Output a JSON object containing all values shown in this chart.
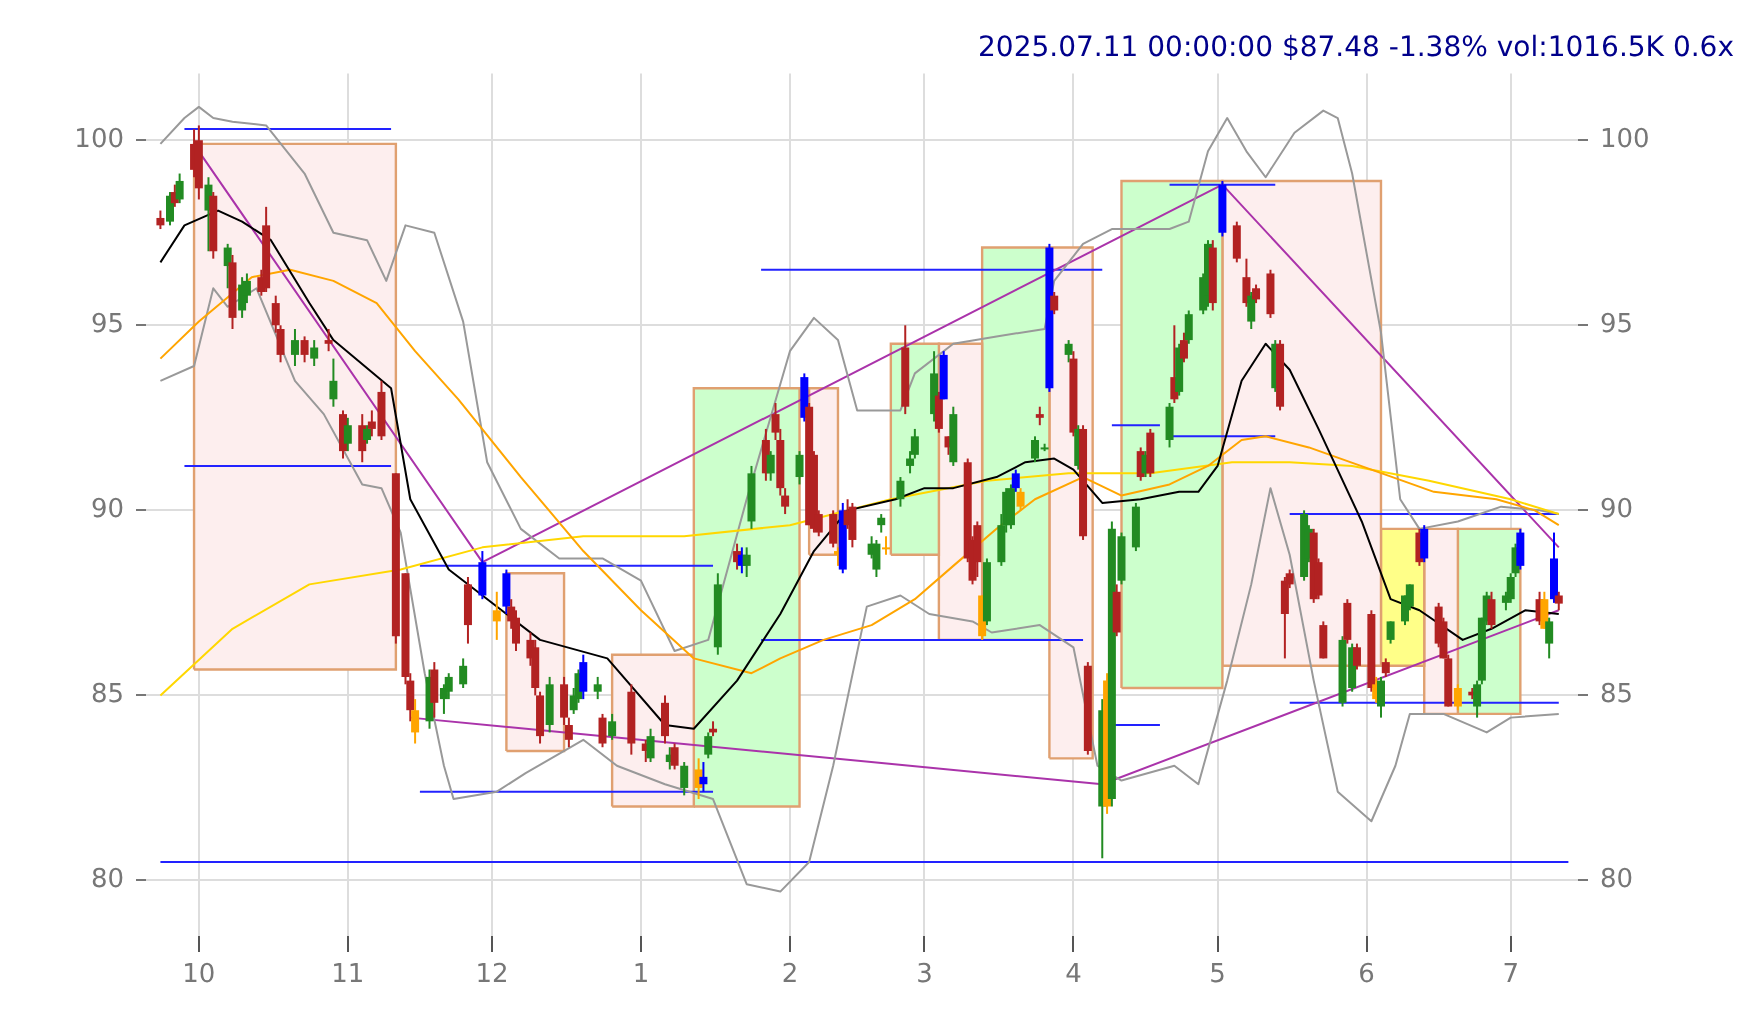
{
  "chart_data": {
    "type": "candlestick",
    "title": "2025.07.11 00:00:00 $87.48 -1.38% vol:1016.5K 0.6x",
    "xlim": [
      "2024-09-20",
      "2025-07-15"
    ],
    "xticks": [
      {
        "value": "2024-10-01",
        "label": "10"
      },
      {
        "value": "2024-11-01",
        "label": "11"
      },
      {
        "value": "2024-12-01",
        "label": "12"
      },
      {
        "value": "2025-01-01",
        "label": "1"
      },
      {
        "value": "2025-02-01",
        "label": "2"
      },
      {
        "value": "2025-03-01",
        "label": "3"
      },
      {
        "value": "2025-04-01",
        "label": "4"
      },
      {
        "value": "2025-05-01",
        "label": "5"
      },
      {
        "value": "2025-06-01",
        "label": "6"
      },
      {
        "value": "2025-07-01",
        "label": "7"
      }
    ],
    "ylim": [
      78.5,
      101.8
    ],
    "yticks": [
      80,
      85,
      90,
      95,
      100
    ],
    "y2lim": [
      78.5,
      101.8
    ],
    "y2ticks": [
      80,
      85,
      90,
      95,
      100
    ],
    "grid": true,
    "x": [
      "2024-09-23",
      "2024-09-25",
      "2024-09-26",
      "2024-09-27",
      "2024-09-30",
      "2024-10-01",
      "2024-10-03",
      "2024-10-04",
      "2024-10-07",
      "2024-10-08",
      "2024-10-10",
      "2024-10-11",
      "2024-10-14",
      "2024-10-15",
      "2024-10-17",
      "2024-10-18",
      "2024-10-21",
      "2024-10-23",
      "2024-10-25",
      "2024-10-28",
      "2024-10-29",
      "2024-10-31",
      "2024-11-01",
      "2024-11-04",
      "2024-11-05",
      "2024-11-06",
      "2024-11-08",
      "2024-11-11",
      "2024-11-13",
      "2024-11-14",
      "2024-11-15",
      "2024-11-18",
      "2024-11-19",
      "2024-11-21",
      "2024-11-22",
      "2024-11-25",
      "2024-11-26",
      "2024-11-29",
      "2024-12-02",
      "2024-12-04",
      "2024-12-05",
      "2024-12-06",
      "2024-12-09",
      "2024-12-10",
      "2024-12-11",
      "2024-12-13",
      "2024-12-16",
      "2024-12-17",
      "2024-12-18",
      "2024-12-19",
      "2024-12-20",
      "2024-12-23",
      "2024-12-24",
      "2024-12-26",
      "2024-12-30",
      "2025-01-02",
      "2025-01-03",
      "2025-01-06",
      "2025-01-07",
      "2025-01-08",
      "2025-01-10",
      "2025-01-13",
      "2025-01-14",
      "2025-01-15",
      "2025-01-16",
      "2025-01-17",
      "2025-01-21",
      "2025-01-22",
      "2025-01-23",
      "2025-01-24",
      "2025-01-27",
      "2025-01-28",
      "2025-01-29",
      "2025-01-30",
      "2025-01-31",
      "2025-02-03",
      "2025-02-04",
      "2025-02-05",
      "2025-02-06",
      "2025-02-07",
      "2025-02-10",
      "2025-02-11",
      "2025-02-12",
      "2025-02-13",
      "2025-02-14",
      "2025-02-18",
      "2025-02-19",
      "2025-02-20",
      "2025-02-21",
      "2025-02-24",
      "2025-02-25",
      "2025-02-26",
      "2025-02-27",
      "2025-03-03",
      "2025-03-04",
      "2025-03-05",
      "2025-03-06",
      "2025-03-07",
      "2025-03-10",
      "2025-03-11",
      "2025-03-12",
      "2025-03-13",
      "2025-03-14",
      "2025-03-17",
      "2025-03-18",
      "2025-03-19",
      "2025-03-20",
      "2025-03-21",
      "2025-03-24",
      "2025-03-25",
      "2025-03-26",
      "2025-03-27",
      "2025-03-28",
      "2025-03-31",
      "2025-04-01",
      "2025-04-02",
      "2025-04-03",
      "2025-04-04",
      "2025-04-07",
      "2025-04-08",
      "2025-04-09",
      "2025-04-10",
      "2025-04-11",
      "2025-04-14",
      "2025-04-15",
      "2025-04-16",
      "2025-04-17",
      "2025-04-21",
      "2025-04-22",
      "2025-04-23",
      "2025-04-24",
      "2025-04-25",
      "2025-04-28",
      "2025-04-29",
      "2025-04-30",
      "2025-05-02",
      "2025-05-05",
      "2025-05-07",
      "2025-05-08",
      "2025-05-09",
      "2025-05-12",
      "2025-05-13",
      "2025-05-14",
      "2025-05-15",
      "2025-05-16",
      "2025-05-19",
      "2025-05-20",
      "2025-05-21",
      "2025-05-22",
      "2025-05-23",
      "2025-05-27",
      "2025-05-28",
      "2025-05-29",
      "2025-05-30",
      "2025-06-02",
      "2025-06-03",
      "2025-06-04",
      "2025-06-05",
      "2025-06-06",
      "2025-06-09",
      "2025-06-10",
      "2025-06-12",
      "2025-06-13",
      "2025-06-16",
      "2025-06-17",
      "2025-06-18",
      "2025-06-20",
      "2025-06-23",
      "2025-06-24",
      "2025-06-25",
      "2025-06-26",
      "2025-06-27",
      "2025-06-30",
      "2025-07-01",
      "2025-07-02",
      "2025-07-03",
      "2025-07-07",
      "2025-07-08",
      "2025-07-09",
      "2025-07-10",
      "2025-07-11"
    ],
    "ohlc": [
      [
        97.9,
        98.1,
        97.6,
        97.7
      ],
      [
        97.8,
        98.6,
        97.7,
        98.5
      ],
      [
        98.6,
        98.8,
        98.2,
        98.3
      ],
      [
        98.4,
        99.1,
        98.3,
        98.9
      ],
      [
        99.9,
        100.3,
        99.0,
        99.2
      ],
      [
        100.0,
        100.4,
        98.4,
        98.7
      ],
      [
        98.1,
        99.0,
        97.0,
        98.8
      ],
      [
        98.5,
        98.6,
        96.8,
        97.0
      ],
      [
        96.6,
        97.2,
        96.0,
        97.1
      ],
      [
        96.7,
        96.9,
        94.9,
        95.2
      ],
      [
        95.4,
        96.3,
        95.2,
        96.1
      ],
      [
        95.8,
        96.4,
        95.6,
        96.2
      ],
      [
        96.3,
        96.5,
        95.8,
        95.9
      ],
      [
        97.7,
        98.2,
        95.9,
        96.0
      ],
      [
        95.6,
        95.8,
        94.8,
        95.0
      ],
      [
        94.9,
        95.0,
        94.0,
        94.2
      ],
      [
        94.2,
        94.9,
        93.9,
        94.6
      ],
      [
        94.6,
        94.7,
        94.0,
        94.2
      ],
      [
        94.1,
        94.6,
        93.9,
        94.4
      ],
      [
        94.6,
        94.9,
        94.3,
        94.5
      ],
      [
        93.0,
        94.1,
        92.8,
        93.5
      ],
      [
        92.6,
        92.7,
        91.4,
        91.6
      ],
      [
        91.8,
        92.5,
        91.6,
        92.3
      ],
      [
        92.3,
        92.6,
        91.3,
        91.6
      ],
      [
        91.9,
        92.3,
        91.8,
        92.2
      ],
      [
        92.4,
        92.7,
        92.0,
        92.2
      ],
      [
        93.2,
        93.5,
        91.9,
        92.0
      ],
      [
        91.0,
        91.0,
        86.4,
        86.6
      ],
      [
        88.3,
        88.3,
        85.3,
        85.5
      ],
      [
        85.4,
        85.6,
        84.3,
        84.6
      ],
      [
        84.6,
        84.9,
        83.7,
        84.0
      ],
      [
        84.3,
        85.7,
        84.1,
        85.5
      ],
      [
        85.7,
        85.9,
        84.4,
        84.8
      ],
      [
        84.9,
        85.3,
        84.5,
        85.2
      ],
      [
        85.1,
        85.6,
        84.9,
        85.5
      ],
      [
        85.3,
        86.0,
        85.2,
        85.8
      ],
      [
        88.0,
        88.2,
        86.4,
        86.9
      ],
      [
        87.7,
        88.9,
        87.6,
        88.6
      ],
      [
        87.3,
        87.8,
        86.5,
        87.0
      ],
      [
        88.3,
        88.4,
        87.2,
        87.4
      ],
      [
        87.4,
        87.6,
        86.8,
        87.0
      ],
      [
        87.1,
        87.3,
        86.2,
        86.4
      ],
      [
        86.5,
        86.7,
        85.8,
        86.0
      ],
      [
        86.3,
        86.5,
        85.0,
        85.2
      ],
      [
        85.0,
        85.1,
        83.7,
        83.9
      ],
      [
        84.2,
        85.5,
        84.0,
        85.3
      ],
      [
        85.3,
        85.5,
        84.2,
        84.4
      ],
      [
        84.2,
        84.4,
        83.6,
        83.8
      ],
      [
        84.6,
        85.2,
        84.5,
        85.0
      ],
      [
        84.9,
        85.7,
        84.8,
        85.6
      ],
      [
        85.9,
        86.1,
        84.9,
        85.1
      ],
      [
        85.1,
        85.5,
        84.9,
        85.3
      ],
      [
        84.4,
        84.5,
        83.6,
        83.7
      ],
      [
        83.9,
        84.5,
        83.8,
        84.3
      ],
      [
        85.1,
        85.3,
        83.4,
        83.7
      ],
      [
        83.7,
        83.8,
        83.2,
        83.5
      ],
      [
        83.3,
        84.1,
        83.2,
        83.9
      ],
      [
        84.8,
        85.0,
        83.7,
        83.9
      ],
      [
        83.2,
        83.6,
        83.0,
        83.4
      ],
      [
        83.6,
        83.7,
        83.0,
        83.1
      ],
      [
        82.5,
        83.2,
        82.3,
        83.1
      ],
      [
        83.0,
        83.3,
        82.2,
        82.5
      ],
      [
        82.6,
        83.2,
        82.4,
        82.8
      ],
      [
        83.4,
        84.0,
        83.3,
        83.9
      ],
      [
        84.1,
        84.3,
        83.9,
        84.0
      ],
      [
        86.3,
        88.3,
        86.1,
        88.0
      ],
      [
        88.9,
        89.1,
        88.4,
        88.6
      ],
      [
        88.5,
        89.0,
        88.3,
        88.8
      ],
      [
        88.5,
        89.0,
        88.2,
        88.8
      ],
      [
        89.7,
        91.2,
        89.5,
        91.0
      ],
      [
        91.9,
        92.2,
        90.8,
        91.0
      ],
      [
        91.0,
        91.6,
        90.8,
        91.5
      ],
      [
        92.6,
        92.9,
        91.9,
        92.1
      ],
      [
        91.9,
        92.2,
        90.4,
        90.6
      ],
      [
        90.4,
        90.6,
        89.9,
        90.1
      ],
      [
        90.9,
        91.6,
        90.7,
        91.5
      ],
      [
        92.5,
        93.7,
        92.4,
        93.6
      ],
      [
        92.8,
        92.9,
        89.6,
        89.6
      ],
      [
        91.5,
        91.6,
        89.4,
        89.5
      ],
      [
        89.9,
        90.0,
        89.3,
        89.4
      ],
      [
        89.9,
        90.0,
        89.0,
        89.1
      ],
      [
        88.9,
        89.0,
        88.5,
        88.8
      ],
      [
        88.4,
        90.2,
        88.3,
        90.0
      ],
      [
        90.0,
        90.3,
        89.5,
        89.6
      ],
      [
        90.1,
        90.2,
        89.0,
        89.2
      ],
      [
        88.8,
        89.3,
        88.7,
        89.1
      ],
      [
        88.4,
        89.2,
        88.2,
        89.1
      ],
      [
        89.6,
        89.9,
        89.4,
        89.8
      ],
      [
        89.0,
        89.3,
        88.8,
        89.0
      ],
      [
        90.3,
        90.9,
        90.1,
        90.8
      ],
      [
        94.4,
        95.0,
        92.6,
        92.8
      ],
      [
        91.2,
        91.6,
        91.0,
        91.4
      ],
      [
        91.5,
        92.2,
        91.4,
        92.0
      ],
      [
        92.6,
        94.3,
        92.4,
        93.7
      ],
      [
        93.1,
        93.2,
        92.1,
        92.2
      ],
      [
        93.0,
        94.3,
        93.0,
        94.2
      ],
      [
        92.0,
        92.0,
        91.5,
        91.7
      ],
      [
        91.3,
        92.8,
        91.2,
        92.6
      ],
      [
        91.3,
        91.4,
        88.6,
        88.7
      ],
      [
        89.2,
        89.3,
        88.0,
        88.1
      ],
      [
        89.6,
        89.7,
        88.2,
        88.6
      ],
      [
        87.7,
        87.7,
        86.5,
        86.6
      ],
      [
        87.0,
        88.7,
        86.9,
        88.6
      ],
      [
        88.6,
        89.9,
        88.5,
        89.6
      ],
      [
        89.6,
        90.6,
        89.4,
        90.5
      ],
      [
        89.6,
        90.7,
        89.5,
        90.6
      ],
      [
        90.6,
        91.1,
        90.5,
        91.0
      ],
      [
        90.5,
        90.6,
        90.0,
        90.1
      ],
      [
        91.4,
        92.0,
        91.3,
        91.9
      ],
      [
        92.6,
        92.8,
        92.3,
        92.5
      ],
      [
        91.7,
        91.8,
        91.6,
        91.7
      ],
      [
        93.3,
        97.2,
        93.2,
        97.1
      ],
      [
        95.8,
        95.9,
        95.3,
        95.4
      ],
      [
        94.2,
        94.6,
        94.0,
        94.5
      ],
      [
        94.1,
        94.3,
        92.0,
        92.1
      ],
      [
        91.2,
        92.3,
        91.1,
        92.2
      ],
      [
        92.2,
        92.3,
        89.2,
        89.3
      ],
      [
        85.8,
        85.9,
        83.4,
        83.5
      ],
      [
        82.0,
        84.9,
        80.6,
        84.6
      ],
      [
        85.4,
        85.6,
        81.8,
        82.0
      ],
      [
        82.2,
        89.7,
        82.0,
        89.5
      ],
      [
        87.8,
        88.0,
        86.6,
        86.7
      ],
      [
        88.1,
        89.4,
        88.0,
        89.3
      ],
      [
        89.0,
        90.2,
        88.9,
        90.1
      ],
      [
        91.6,
        91.7,
        90.8,
        90.9
      ],
      [
        91.0,
        91.6,
        90.9,
        91.5
      ],
      [
        92.1,
        92.2,
        90.9,
        91.0
      ],
      [
        91.9,
        92.9,
        91.7,
        92.8
      ],
      [
        93.6,
        95.0,
        92.9,
        93.0
      ],
      [
        93.2,
        94.5,
        93.1,
        94.4
      ],
      [
        94.6,
        94.8,
        94.0,
        94.1
      ],
      [
        94.6,
        95.4,
        94.5,
        95.3
      ],
      [
        95.4,
        96.4,
        95.3,
        96.3
      ],
      [
        95.8,
        97.3,
        95.5,
        97.2
      ],
      [
        97.1,
        97.3,
        95.4,
        95.6
      ],
      [
        97.5,
        98.9,
        97.4,
        98.8
      ],
      [
        97.7,
        97.8,
        96.7,
        96.8
      ],
      [
        96.3,
        96.8,
        95.5,
        95.6
      ],
      [
        95.1,
        95.9,
        94.9,
        95.8
      ],
      [
        96.0,
        96.1,
        95.6,
        95.7
      ],
      [
        96.4,
        96.5,
        95.2,
        95.3
      ],
      [
        93.3,
        94.6,
        93.2,
        94.5
      ],
      [
        94.5,
        94.6,
        92.7,
        92.8
      ],
      [
        88.1,
        88.2,
        86.0,
        87.2
      ],
      [
        88.3,
        88.4,
        87.9,
        88.0
      ],
      [
        88.2,
        90.0,
        88.1,
        89.9
      ],
      [
        88.7,
        89.6,
        88.6,
        89.5
      ],
      [
        89.4,
        89.5,
        87.5,
        87.6
      ],
      [
        88.6,
        88.7,
        87.6,
        87.7
      ],
      [
        86.9,
        87.0,
        86.0,
        86.0
      ],
      [
        84.8,
        86.6,
        84.7,
        86.5
      ],
      [
        87.5,
        87.6,
        86.4,
        86.5
      ],
      [
        85.2,
        86.4,
        85.1,
        86.3
      ],
      [
        86.3,
        86.4,
        85.7,
        85.8
      ],
      [
        87.2,
        87.3,
        85.1,
        85.2
      ],
      [
        85.3,
        85.5,
        84.8,
        84.9
      ],
      [
        84.7,
        85.5,
        84.4,
        85.4
      ],
      [
        85.9,
        86.0,
        85.5,
        85.6
      ],
      [
        86.5,
        87.0,
        86.4,
        87.0
      ],
      [
        87.0,
        87.7,
        86.9,
        87.7
      ],
      [
        87.4,
        88.0,
        87.3,
        88.0
      ],
      [
        89.4,
        89.5,
        88.5,
        88.6
      ],
      [
        88.7,
        89.6,
        88.6,
        89.5
      ],
      [
        87.4,
        87.5,
        86.3,
        86.4
      ],
      [
        87.0,
        87.1,
        86.0,
        86.0
      ],
      [
        86.0,
        86.1,
        84.7,
        84.7
      ],
      [
        85.2,
        85.3,
        84.6,
        84.7
      ],
      [
        85.1,
        85.2,
        84.9,
        85.0
      ],
      [
        84.7,
        85.4,
        84.4,
        85.3
      ],
      [
        85.4,
        87.1,
        85.3,
        87.1
      ],
      [
        87.0,
        87.8,
        86.9,
        87.7
      ],
      [
        87.6,
        87.8,
        86.8,
        86.9
      ],
      [
        87.5,
        87.8,
        87.3,
        87.7
      ],
      [
        87.6,
        88.3,
        87.5,
        88.2
      ],
      [
        88.3,
        89.1,
        88.2,
        89.0
      ],
      [
        88.5,
        89.5,
        88.4,
        89.4
      ],
      [
        87.6,
        87.8,
        86.9,
        87.0
      ],
      [
        87.6,
        87.8,
        86.8,
        86.8
      ],
      [
        86.4,
        87.1,
        86.0,
        87.0
      ],
      [
        87.6,
        89.4,
        87.5,
        88.7
      ],
      [
        87.7,
        87.8,
        87.3,
        87.48
      ]
    ],
    "colors": [
      "#b22222",
      "#228b22",
      "#b22222",
      "#228b22",
      "#b22222",
      "#b22222",
      "#228b22",
      "#b22222",
      "#228b22",
      "#b22222",
      "#228b22",
      "#228b22",
      "#b22222",
      "#b22222",
      "#b22222",
      "#b22222",
      "#228b22",
      "#b22222",
      "#228b22",
      "#b22222",
      "#228b22",
      "#b22222",
      "#228b22",
      "#b22222",
      "#228b22",
      "#b22222",
      "#b22222",
      "#b22222",
      "#b22222",
      "#b22222",
      "#ffa500",
      "#228b22",
      "#b22222",
      "#228b22",
      "#228b22",
      "#228b22",
      "#b22222",
      "#0000ff",
      "#ffa500",
      "#0000ff",
      "#b22222",
      "#b22222",
      "#b22222",
      "#b22222",
      "#b22222",
      "#228b22",
      "#b22222",
      "#b22222",
      "#228b22",
      "#228b22",
      "#0000ff",
      "#228b22",
      "#b22222",
      "#228b22",
      "#b22222",
      "#b22222",
      "#228b22",
      "#b22222",
      "#228b22",
      "#b22222",
      "#228b22",
      "#ffa500",
      "#0000ff",
      "#228b22",
      "#b22222",
      "#228b22",
      "#b22222",
      "#0000ff",
      "#228b22",
      "#228b22",
      "#b22222",
      "#228b22",
      "#b22222",
      "#b22222",
      "#b22222",
      "#228b22",
      "#0000ff",
      "#b22222",
      "#b22222",
      "#b22222",
      "#b22222",
      "#ffa500",
      "#0000ff",
      "#b22222",
      "#b22222",
      "#228b22",
      "#228b22",
      "#228b22",
      "#ffa500",
      "#228b22",
      "#b22222",
      "#228b22",
      "#228b22",
      "#228b22",
      "#b22222",
      "#0000ff",
      "#b22222",
      "#228b22",
      "#b22222",
      "#b22222",
      "#b22222",
      "#ffa500",
      "#228b22",
      "#228b22",
      "#228b22",
      "#228b22",
      "#0000ff",
      "#ffa500",
      "#228b22",
      "#b22222",
      "#228b22",
      "#0000ff",
      "#b22222",
      "#228b22",
      "#b22222",
      "#228b22",
      "#b22222",
      "#b22222",
      "#228b22",
      "#ffa500",
      "#228b22",
      "#b22222",
      "#228b22",
      "#228b22",
      "#b22222",
      "#228b22",
      "#b22222",
      "#228b22",
      "#b22222",
      "#228b22",
      "#b22222",
      "#228b22",
      "#228b22",
      "#228b22",
      "#b22222",
      "#0000ff",
      "#b22222",
      "#b22222",
      "#228b22",
      "#b22222",
      "#b22222",
      "#228b22",
      "#b22222",
      "#b22222",
      "#b22222",
      "#228b22",
      "#228b22",
      "#b22222",
      "#b22222",
      "#b22222",
      "#228b22",
      "#b22222",
      "#228b22",
      "#b22222",
      "#b22222",
      "#ffa500",
      "#228b22",
      "#b22222",
      "#228b22",
      "#228b22",
      "#228b22",
      "#b22222",
      "#0000ff",
      "#b22222",
      "#b22222",
      "#b22222",
      "#ffa500",
      "#b22222",
      "#228b22",
      "#228b22",
      "#228b22",
      "#b22222",
      "#228b22",
      "#228b22",
      "#228b22",
      "#0000ff",
      "#b22222",
      "#ffa500",
      "#228b22",
      "#0000ff",
      "#b22222"
    ],
    "series": [
      {
        "type": "line",
        "color": "#000000",
        "x": [
          "2024-09-23",
          "2024-09-28",
          "2024-10-05",
          "2024-10-10",
          "2024-10-16",
          "2024-10-24",
          "2024-10-29",
          "2024-11-10",
          "2024-11-14",
          "2024-11-22",
          "2024-12-03",
          "2024-12-11",
          "2024-12-25",
          "2025-01-06",
          "2025-01-12",
          "2025-01-21",
          "2025-01-30",
          "2025-02-06",
          "2025-02-13",
          "2025-02-23",
          "2025-03-01",
          "2025-03-07",
          "2025-03-16",
          "2025-03-22",
          "2025-03-28",
          "2025-04-01",
          "2025-04-07",
          "2025-04-15",
          "2025-04-23",
          "2025-04-27",
          "2025-05-01",
          "2025-05-06",
          "2025-05-11",
          "2025-05-16",
          "2025-05-22",
          "2025-05-31",
          "2025-06-06",
          "2025-06-12",
          "2025-06-21",
          "2025-06-27",
          "2025-07-04",
          "2025-07-11"
        ],
        "values": [
          96.7,
          97.7,
          98.1,
          97.8,
          97.3,
          95.6,
          94.6,
          93.3,
          90.3,
          88.4,
          87.3,
          86.5,
          86.0,
          84.2,
          84.1,
          85.4,
          87.2,
          88.9,
          90.0,
          90.3,
          90.6,
          90.6,
          90.9,
          91.3,
          91.4,
          91.1,
          90.2,
          90.3,
          90.5,
          90.5,
          91.2,
          93.5,
          94.5,
          93.8,
          92.2,
          89.7,
          87.6,
          87.3,
          86.5,
          86.8,
          87.3,
          87.2
        ]
      },
      {
        "type": "line",
        "color": "#ffa500",
        "x": [
          "2024-09-23",
          "2024-10-01",
          "2024-10-12",
          "2024-10-20",
          "2024-10-29",
          "2024-11-07",
          "2024-11-15",
          "2024-11-24",
          "2024-12-07",
          "2024-12-20",
          "2025-01-01",
          "2025-01-12",
          "2025-01-24",
          "2025-01-30",
          "2025-02-08",
          "2025-02-18",
          "2025-02-27",
          "2025-03-07",
          "2025-03-16",
          "2025-03-24",
          "2025-04-03",
          "2025-04-11",
          "2025-04-21",
          "2025-04-29",
          "2025-05-06",
          "2025-05-11",
          "2025-05-20",
          "2025-06-02",
          "2025-06-15",
          "2025-06-28",
          "2025-07-06",
          "2025-07-11"
        ],
        "values": [
          94.1,
          95.1,
          96.3,
          96.5,
          96.2,
          95.6,
          94.3,
          93.0,
          90.9,
          88.9,
          87.3,
          86.0,
          85.6,
          86.0,
          86.5,
          86.9,
          87.6,
          88.5,
          89.5,
          90.3,
          90.9,
          90.4,
          90.7,
          91.2,
          91.9,
          92.0,
          91.7,
          91.1,
          90.5,
          90.3,
          90.0,
          89.6
        ]
      },
      {
        "type": "line",
        "color": "#ffd700",
        "x": [
          "2024-09-23",
          "2024-10-08",
          "2024-10-24",
          "2024-11-12",
          "2024-11-29",
          "2024-12-20",
          "2025-01-10",
          "2025-02-01",
          "2025-02-22",
          "2025-03-14",
          "2025-03-31",
          "2025-04-17",
          "2025-05-04",
          "2025-05-16",
          "2025-05-29",
          "2025-06-14",
          "2025-07-01",
          "2025-07-11"
        ],
        "values": [
          85.0,
          86.8,
          88.0,
          88.4,
          89.0,
          89.3,
          89.3,
          89.6,
          90.3,
          90.8,
          91.0,
          91.0,
          91.3,
          91.3,
          91.2,
          90.8,
          90.3,
          89.9
        ]
      },
      {
        "type": "line",
        "color": "#999999",
        "x": [
          "2024-09-23",
          "2024-09-28",
          "2024-10-01",
          "2024-10-04",
          "2024-10-08",
          "2024-10-15",
          "2024-10-23",
          "2024-10-29",
          "2024-11-05",
          "2024-11-09",
          "2024-11-13",
          "2024-11-19",
          "2024-11-25",
          "2024-11-30",
          "2024-12-07",
          "2024-12-15",
          "2024-12-24",
          "2025-01-01",
          "2025-01-08",
          "2025-01-15",
          "2025-01-23",
          "2025-02-01",
          "2025-02-06",
          "2025-02-11",
          "2025-02-15",
          "2025-02-19",
          "2025-02-24",
          "2025-02-27",
          "2025-03-07",
          "2025-03-16",
          "2025-03-26",
          "2025-03-28",
          "2025-04-03",
          "2025-04-09",
          "2025-04-21",
          "2025-04-25",
          "2025-04-29",
          "2025-05-03",
          "2025-05-07",
          "2025-05-11",
          "2025-05-17",
          "2025-05-23",
          "2025-05-26",
          "2025-05-29",
          "2025-06-04",
          "2025-06-08",
          "2025-06-12",
          "2025-06-20",
          "2025-06-29",
          "2025-07-07",
          "2025-07-11"
        ],
        "values": [
          99.9,
          100.6,
          100.9,
          100.6,
          100.5,
          100.4,
          99.1,
          97.5,
          97.3,
          96.2,
          97.7,
          97.5,
          95.1,
          91.3,
          89.5,
          88.7,
          88.7,
          88.1,
          86.2,
          86.5,
          90.3,
          94.3,
          95.2,
          94.6,
          92.7,
          92.7,
          92.7,
          93.7,
          94.5,
          94.7,
          94.9,
          96.2,
          97.2,
          97.6,
          97.6,
          97.8,
          99.7,
          100.6,
          99.7,
          99.0,
          100.2,
          100.8,
          100.6,
          99.1,
          94.8,
          90.3,
          89.5,
          89.7,
          90.1,
          90.0,
          89.9
        ]
      },
      {
        "type": "line",
        "color": "#999999",
        "x": [
          "2024-09-23",
          "2024-09-30",
          "2024-10-04",
          "2024-10-07",
          "2024-10-13",
          "2024-10-21",
          "2024-10-27",
          "2024-11-04",
          "2024-11-08",
          "2024-11-12",
          "2024-11-17",
          "2024-11-21",
          "2024-11-23",
          "2024-12-02",
          "2024-12-08",
          "2024-12-20",
          "2024-12-27",
          "2025-01-06",
          "2025-01-16",
          "2025-01-23",
          "2025-01-30",
          "2025-02-05",
          "2025-02-10",
          "2025-02-17",
          "2025-02-24",
          "2025-03-02",
          "2025-03-11",
          "2025-03-15",
          "2025-03-25",
          "2025-04-01",
          "2025-04-06",
          "2025-04-11",
          "2025-04-22",
          "2025-04-27",
          "2025-05-03",
          "2025-05-08",
          "2025-05-12",
          "2025-05-16",
          "2025-05-21",
          "2025-05-26",
          "2025-06-02",
          "2025-06-07",
          "2025-06-10",
          "2025-06-17",
          "2025-06-26",
          "2025-07-01",
          "2025-07-11"
        ],
        "values": [
          93.5,
          93.9,
          96.0,
          95.5,
          96.0,
          93.5,
          92.6,
          90.7,
          90.6,
          89.4,
          85.6,
          83.1,
          82.2,
          82.4,
          82.9,
          83.8,
          83.1,
          82.6,
          82.2,
          79.9,
          79.7,
          80.5,
          83.1,
          87.4,
          87.7,
          87.2,
          87.0,
          86.7,
          86.9,
          86.3,
          83.1,
          82.7,
          83.1,
          82.6,
          85.4,
          88.0,
          90.6,
          88.8,
          85.4,
          82.4,
          81.6,
          83.1,
          84.5,
          84.5,
          84.0,
          84.4,
          84.5
        ]
      },
      {
        "type": "line",
        "color": "#aa33aa",
        "x": [
          "2024-10-01",
          "2024-11-29",
          "2025-05-02",
          "2025-07-11"
        ],
        "values": [
          99.7,
          88.6,
          98.8,
          89.0
        ]
      },
      {
        "type": "line",
        "color": "#aa33aa",
        "x": [
          "2024-11-14",
          "2025-04-07",
          "2025-07-11"
        ],
        "values": [
          84.4,
          82.6,
          87.3
        ]
      },
      {
        "type": "line",
        "color": "#2222ff",
        "x": [
          "2024-09-28",
          "2024-11-10"
        ],
        "values": [
          100.3,
          100.3
        ]
      },
      {
        "type": "line",
        "color": "#2222ff",
        "x": [
          "2024-09-28",
          "2024-11-10"
        ],
        "values": [
          91.2,
          91.2
        ]
      },
      {
        "type": "line",
        "color": "#2222ff",
        "x": [
          "2024-11-16",
          "2025-01-16"
        ],
        "values": [
          88.5,
          88.5
        ]
      },
      {
        "type": "line",
        "color": "#2222ff",
        "x": [
          "2024-11-16",
          "2025-01-16"
        ],
        "values": [
          82.4,
          82.4
        ]
      },
      {
        "type": "line",
        "color": "#2222ff",
        "x": [
          "2025-01-26",
          "2025-04-07"
        ],
        "values": [
          96.5,
          96.5
        ]
      },
      {
        "type": "line",
        "color": "#2222ff",
        "x": [
          "2025-01-26",
          "2025-04-03"
        ],
        "values": [
          86.5,
          86.5
        ]
      },
      {
        "type": "line",
        "color": "#2222ff",
        "x": [
          "2025-04-09",
          "2025-04-19"
        ],
        "values": [
          92.3,
          92.3
        ]
      },
      {
        "type": "line",
        "color": "#2222ff",
        "x": [
          "2025-04-09",
          "2025-04-19"
        ],
        "values": [
          84.2,
          84.2
        ]
      },
      {
        "type": "line",
        "color": "#2222ff",
        "x": [
          "2025-04-21",
          "2025-05-13"
        ],
        "values": [
          92.0,
          92.0
        ]
      },
      {
        "type": "line",
        "color": "#2222ff",
        "x": [
          "2025-04-21",
          "2025-05-13"
        ],
        "values": [
          98.8,
          98.8
        ]
      },
      {
        "type": "line",
        "color": "#2222ff",
        "x": [
          "2025-05-16",
          "2025-07-11"
        ],
        "values": [
          89.9,
          89.9
        ]
      },
      {
        "type": "line",
        "color": "#2222ff",
        "x": [
          "2025-05-16",
          "2025-07-11"
        ],
        "values": [
          84.8,
          84.8
        ]
      },
      {
        "type": "line",
        "color": "#2222ff",
        "x": [
          "2024-09-23",
          "2025-07-13"
        ],
        "values": [
          80.5,
          80.5
        ]
      },
      {
        "type": "area",
        "color": "#fdeeee",
        "x": [
          "2024-09-30",
          "2024-09-30",
          "2024-11-11",
          "2024-11-11",
          "2024-09-30"
        ],
        "values": [
          85.7,
          99.9,
          99.9,
          85.7,
          85.7
        ]
      },
      {
        "type": "area",
        "color": "#fdeeee",
        "x": [
          "2024-12-04",
          "2024-12-04",
          "2024-12-16",
          "2024-12-16",
          "2024-12-04"
        ],
        "values": [
          83.5,
          88.3,
          88.3,
          83.5,
          83.5
        ]
      },
      {
        "type": "area",
        "color": "#fdeeee",
        "x": [
          "2024-12-26",
          "2024-12-26",
          "2025-01-12",
          "2025-01-12",
          "2024-12-26"
        ],
        "values": [
          82.0,
          86.1,
          86.1,
          82.0,
          82.0
        ]
      },
      {
        "type": "area",
        "color": "#ccffcc",
        "x": [
          "2025-01-12",
          "2025-01-12",
          "2025-02-03",
          "2025-02-03",
          "2025-01-12"
        ],
        "values": [
          82.0,
          93.3,
          93.3,
          82.0,
          82.0
        ]
      },
      {
        "type": "area",
        "color": "#fdeeee",
        "x": [
          "2025-02-05",
          "2025-02-05",
          "2025-02-11",
          "2025-02-11",
          "2025-02-05"
        ],
        "values": [
          88.8,
          93.3,
          93.3,
          88.8,
          88.8
        ]
      },
      {
        "type": "area",
        "color": "#ccffcc",
        "x": [
          "2025-02-22",
          "2025-02-22",
          "2025-03-04",
          "2025-03-04",
          "2025-02-22"
        ],
        "values": [
          88.8,
          94.5,
          94.5,
          88.8,
          88.8
        ]
      },
      {
        "type": "area",
        "color": "#fdeeee",
        "x": [
          "2025-03-04",
          "2025-03-04",
          "2025-03-13",
          "2025-03-13",
          "2025-03-04"
        ],
        "values": [
          86.5,
          94.5,
          94.5,
          86.5,
          86.5
        ]
      },
      {
        "type": "area",
        "color": "#ccffcc",
        "x": [
          "2025-03-13",
          "2025-03-13",
          "2025-03-27",
          "2025-03-27",
          "2025-03-13"
        ],
        "values": [
          86.5,
          97.1,
          97.1,
          86.5,
          86.5
        ]
      },
      {
        "type": "area",
        "color": "#fdeeee",
        "x": [
          "2025-03-27",
          "2025-03-27",
          "2025-04-05",
          "2025-04-05",
          "2025-03-27"
        ],
        "values": [
          83.3,
          97.1,
          97.1,
          83.3,
          83.3
        ]
      },
      {
        "type": "area",
        "color": "#ccffcc",
        "x": [
          "2025-04-11",
          "2025-04-11",
          "2025-05-02",
          "2025-05-02",
          "2025-04-11"
        ],
        "values": [
          85.2,
          98.9,
          98.9,
          85.2,
          85.2
        ]
      },
      {
        "type": "area",
        "color": "#fdeeee",
        "x": [
          "2025-05-02",
          "2025-05-02",
          "2025-06-04",
          "2025-06-04",
          "2025-05-02"
        ],
        "values": [
          85.8,
          98.9,
          98.9,
          85.8,
          85.8
        ]
      },
      {
        "type": "area",
        "color": "#ffff88",
        "x": [
          "2025-06-04",
          "2025-06-04",
          "2025-06-13",
          "2025-06-13",
          "2025-06-04"
        ],
        "values": [
          85.8,
          89.5,
          89.5,
          85.8,
          85.8
        ]
      },
      {
        "type": "area",
        "color": "#fdeeee",
        "x": [
          "2025-06-13",
          "2025-06-13",
          "2025-06-20",
          "2025-06-20",
          "2025-06-13"
        ],
        "values": [
          84.5,
          89.5,
          89.5,
          84.5,
          84.5
        ]
      },
      {
        "type": "area",
        "color": "#ccffcc",
        "x": [
          "2025-06-20",
          "2025-06-20",
          "2025-07-03",
          "2025-07-03",
          "2025-06-20"
        ],
        "values": [
          84.5,
          89.5,
          89.5,
          84.5,
          84.5
        ]
      }
    ]
  }
}
